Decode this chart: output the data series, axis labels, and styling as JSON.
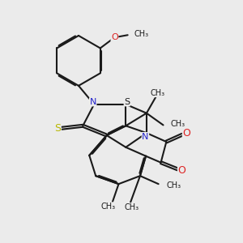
{
  "bg_color": "#ebebeb",
  "bond_color": "#1a1a1a",
  "N_color": "#2222cc",
  "S_color": "#b8b800",
  "O_color": "#dd2222",
  "line_width": 1.5,
  "dbo": 0.055,
  "xlim": [
    0,
    10
  ],
  "ylim": [
    0,
    10
  ]
}
